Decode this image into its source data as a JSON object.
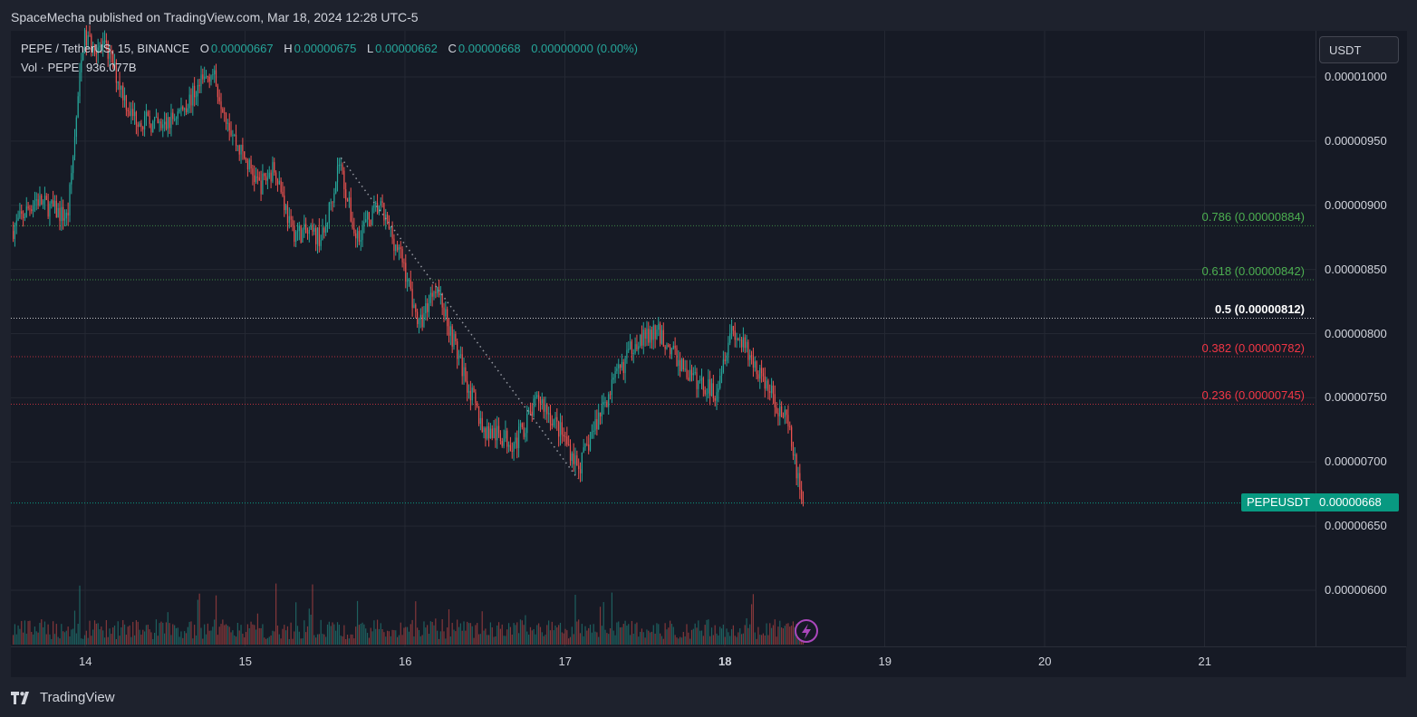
{
  "header": {
    "publisher": "SpaceMecha published on TradingView.com, Mar 18, 2024 12:28 UTC-5"
  },
  "legend": {
    "symbol": "PEPE / TetherUS, 15, BINANCE",
    "o_label": "O",
    "o_value": "0.00000667",
    "h_label": "H",
    "h_value": "0.00000675",
    "l_label": "L",
    "l_value": "0.00000662",
    "c_label": "C",
    "c_value": "0.00000668",
    "change": "0.00000000 (0.00%)",
    "vol_label": "Vol · PEPE",
    "vol_value": "936.077B"
  },
  "currency_button": "USDT",
  "last_price_tag": {
    "symbol": "PEPEUSDT",
    "price": "0.00000668"
  },
  "footer": {
    "brand": "TradingView"
  },
  "colors": {
    "up": "#26a69a",
    "down": "#ef5350",
    "fib_green": "#4caf50",
    "fib_red": "#f23645",
    "fib_white": "#ffffff",
    "last_price": "#089981",
    "background": "#161a25"
  },
  "chart_data": {
    "type": "candlestick",
    "title": "PEPE / TetherUS, 15, BINANCE",
    "y_axis": {
      "ticks": [
        "0.00001000",
        "0.00000950",
        "0.00000900",
        "0.00000850",
        "0.00000800",
        "0.00000750",
        "0.00000700",
        "0.00000650",
        "0.00000600"
      ],
      "range": [
        5.74e-06,
        1.045e-05
      ]
    },
    "x_axis": {
      "ticks": [
        "14",
        "15",
        "16",
        "17",
        "18",
        "19",
        "20",
        "21"
      ],
      "range_days": [
        13.54,
        21.7
      ]
    },
    "price_path": [
      [
        13.55,
        8.8
      ],
      [
        13.7,
        9.05
      ],
      [
        13.9,
        8.9
      ],
      [
        14.0,
        10.3
      ],
      [
        14.15,
        10.2
      ],
      [
        14.3,
        9.7
      ],
      [
        14.5,
        9.6
      ],
      [
        14.65,
        9.8
      ],
      [
        14.8,
        10.05
      ],
      [
        14.95,
        9.5
      ],
      [
        15.1,
        9.15
      ],
      [
        15.2,
        9.3
      ],
      [
        15.3,
        8.8
      ],
      [
        15.5,
        8.75
      ],
      [
        15.6,
        9.35
      ],
      [
        15.7,
        8.75
      ],
      [
        15.85,
        9.0
      ],
      [
        16.0,
        8.55
      ],
      [
        16.1,
        8.05
      ],
      [
        16.2,
        8.4
      ],
      [
        16.35,
        7.8
      ],
      [
        16.5,
        7.25
      ],
      [
        16.7,
        7.15
      ],
      [
        16.85,
        7.5
      ],
      [
        17.0,
        7.2
      ],
      [
        17.1,
        6.95
      ],
      [
        17.25,
        7.45
      ],
      [
        17.45,
        7.95
      ],
      [
        17.6,
        8.0
      ],
      [
        17.8,
        7.65
      ],
      [
        17.95,
        7.55
      ],
      [
        18.05,
        8.05
      ],
      [
        18.25,
        7.65
      ],
      [
        18.4,
        7.3
      ],
      [
        18.5,
        6.68
      ]
    ],
    "price_path_units": "x in days (Mar), y in units of 1e-6 USDT",
    "fib_levels": [
      {
        "label": "0.786 (0.00000884)",
        "value": 8.84e-06,
        "color": "green"
      },
      {
        "label": "0.618 (0.00000842)",
        "value": 8.42e-06,
        "color": "green"
      },
      {
        "label": "0.5 (0.00000812)",
        "value": 8.12e-06,
        "color": "white"
      },
      {
        "label": "0.382 (0.00000782)",
        "value": 7.82e-06,
        "color": "red"
      },
      {
        "label": "0.236 (0.00000745)",
        "value": 7.45e-06,
        "color": "red"
      }
    ],
    "trend_line": {
      "from": [
        15.6,
        9.37e-06
      ],
      "to": [
        17.08,
        6.87e-06
      ]
    },
    "last_price": 6.68e-06,
    "volume_series": "PEPE",
    "volume_last": "936.077B"
  }
}
